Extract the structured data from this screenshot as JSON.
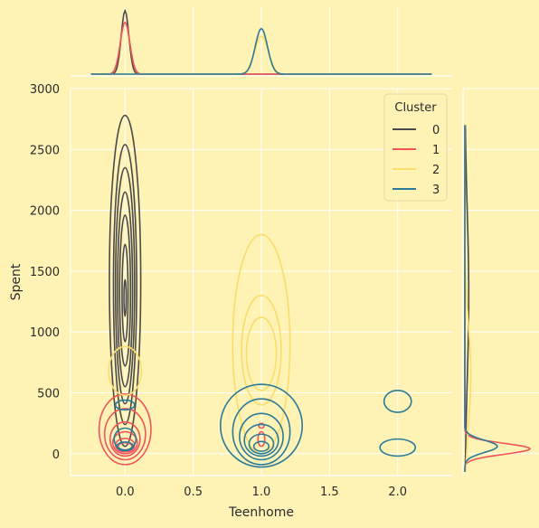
{
  "chart_data": {
    "type": "kde-jointplot",
    "xlabel": "Teenhome",
    "ylabel": "Spent",
    "xlim": [
      -0.4,
      2.4
    ],
    "ylim": [
      -180,
      3000
    ],
    "xticks": [
      0.0,
      0.5,
      1.0,
      1.5,
      2.0
    ],
    "xtick_labels": [
      "0.0",
      "0.5",
      "1.0",
      "1.5",
      "2.0"
    ],
    "yticks": [
      0,
      500,
      1000,
      1500,
      2000,
      2500,
      3000
    ],
    "ytick_labels": [
      "0",
      "500",
      "1000",
      "1500",
      "2000",
      "2500",
      "3000"
    ],
    "grid": true,
    "legend": {
      "title": "Cluster",
      "placement": "top-right",
      "entries": [
        "0",
        "1",
        "2",
        "3"
      ]
    },
    "colors": {
      "background": "#FFF2B5",
      "grid": "#FFFFFF",
      "0": "#4A4A4A",
      "1": "#F0555A",
      "2": "#FBDD6B",
      "3": "#2A7A9A"
    },
    "series": [
      {
        "name": "0",
        "contours": [
          {
            "x": 0.0,
            "y": 1280,
            "w": 0.008,
            "h": 150
          },
          {
            "x": 0.0,
            "y": 1320,
            "w": 0.022,
            "h": 400
          },
          {
            "x": 0.0,
            "y": 1340,
            "w": 0.04,
            "h": 620
          },
          {
            "x": 0.0,
            "y": 1350,
            "w": 0.055,
            "h": 800
          },
          {
            "x": 0.0,
            "y": 1380,
            "w": 0.07,
            "h": 970
          },
          {
            "x": 0.0,
            "y": 1390,
            "w": 0.085,
            "h": 1150
          },
          {
            "x": 0.0,
            "y": 1420,
            "w": 0.115,
            "h": 1360
          }
        ],
        "x_marginal": {
          "center": 0.0,
          "sd": 0.028,
          "peak": 1.0
        },
        "y_marginal": {
          "center": 1300,
          "sd": 700,
          "peak": 0.06
        }
      },
      {
        "name": "1",
        "contours": [
          {
            "x": 0.0,
            "y": 60,
            "w": 0.05,
            "h": 30
          },
          {
            "x": 0.0,
            "y": 70,
            "w": 0.07,
            "h": 55
          },
          {
            "x": 0.0,
            "y": 90,
            "w": 0.09,
            "h": 90
          },
          {
            "x": 0.0,
            "y": 120,
            "w": 0.11,
            "h": 140
          },
          {
            "x": 0.0,
            "y": 160,
            "w": 0.15,
            "h": 210
          },
          {
            "x": 0.0,
            "y": 200,
            "w": 0.19,
            "h": 290
          },
          {
            "x": 1.0,
            "y": 120,
            "w": 0.025,
            "h": 60
          },
          {
            "x": 1.0,
            "y": 230,
            "w": 0.02,
            "h": 20
          }
        ],
        "x_marginal": {
          "center": 0.0,
          "sd": 0.035,
          "peak": 0.82
        },
        "y_marginal": {
          "center": 40,
          "sd": 45,
          "peak": 1.0
        }
      },
      {
        "name": "2",
        "contours": [
          {
            "x": 0.0,
            "y": 680,
            "w": 0.12,
            "h": 200
          },
          {
            "x": 1.0,
            "y": 820,
            "w": 0.11,
            "h": 300
          },
          {
            "x": 1.0,
            "y": 850,
            "w": 0.145,
            "h": 450
          },
          {
            "x": 1.0,
            "y": 900,
            "w": 0.21,
            "h": 900
          }
        ],
        "x_marginal": {
          "center": 1.0,
          "sd": 0.05,
          "peak": 0.6
        },
        "y_marginal": {
          "center": 650,
          "sd": 420,
          "peak": 0.09
        }
      },
      {
        "name": "3",
        "contours": [
          {
            "x": 0.0,
            "y": 60,
            "w": 0.06,
            "h": 35
          },
          {
            "x": 0.0,
            "y": 120,
            "w": 0.08,
            "h": 90
          },
          {
            "x": 0.0,
            "y": 400,
            "w": 0.07,
            "h": 40
          },
          {
            "x": 1.0,
            "y": 60,
            "w": 0.055,
            "h": 40
          },
          {
            "x": 1.0,
            "y": 80,
            "w": 0.09,
            "h": 80
          },
          {
            "x": 1.0,
            "y": 110,
            "w": 0.125,
            "h": 130
          },
          {
            "x": 1.0,
            "y": 140,
            "w": 0.16,
            "h": 190
          },
          {
            "x": 1.0,
            "y": 180,
            "w": 0.21,
            "h": 270
          },
          {
            "x": 1.0,
            "y": 230,
            "w": 0.3,
            "h": 340
          },
          {
            "x": 2.0,
            "y": 50,
            "w": 0.13,
            "h": 70
          },
          {
            "x": 2.0,
            "y": 430,
            "w": 0.1,
            "h": 90
          }
        ],
        "x_marginal": {
          "center": 1.0,
          "sd": 0.045,
          "peak": 0.72
        },
        "y_marginal": {
          "center": 60,
          "sd": 50,
          "peak": 0.5
        }
      }
    ]
  }
}
